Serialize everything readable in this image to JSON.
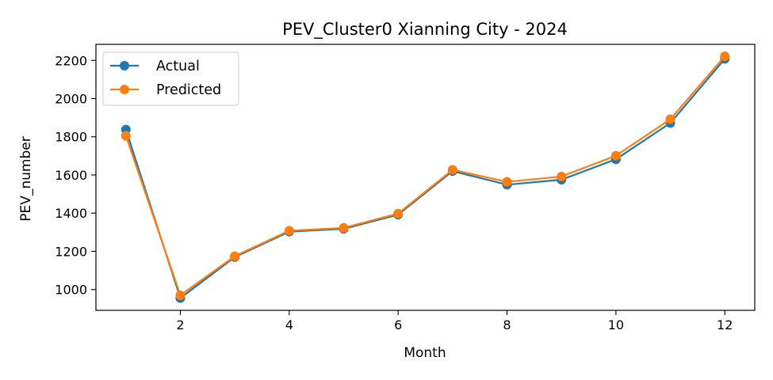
{
  "chart_data": {
    "type": "line",
    "title": "PEV_Cluster0 Xianning City - 2024",
    "xlabel": "Month",
    "ylabel": "PEV_number",
    "x": [
      1,
      2,
      3,
      4,
      5,
      6,
      7,
      8,
      9,
      10,
      11,
      12
    ],
    "xticks": [
      2,
      4,
      6,
      8,
      10,
      12
    ],
    "yticks": [
      1000,
      1200,
      1400,
      1600,
      1800,
      2000,
      2200
    ],
    "xlim": [
      0.45,
      12.55
    ],
    "ylim": [
      891,
      2284
    ],
    "grid": false,
    "legend": "upper left",
    "series": [
      {
        "name": "Actual",
        "color": "#1f77b4",
        "marker": "circle",
        "values": [
          1838,
          955,
          1170,
          1303,
          1318,
          1392,
          1620,
          1549,
          1575,
          1682,
          1872,
          2208
        ]
      },
      {
        "name": "Predicted",
        "color": "#ff7f0e",
        "marker": "circle",
        "values": [
          1805,
          970,
          1175,
          1308,
          1323,
          1398,
          1627,
          1564,
          1592,
          1701,
          1892,
          2222
        ]
      }
    ]
  }
}
